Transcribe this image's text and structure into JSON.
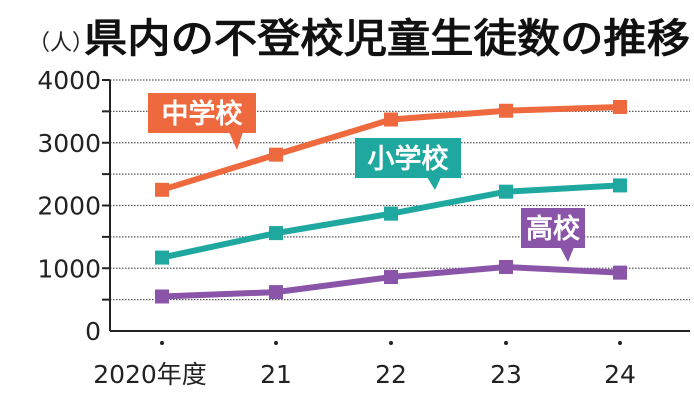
{
  "chart_data": {
    "type": "line",
    "title": "県内の不登校児童生徒数の推移",
    "ylabel": "（人）",
    "xlabel": "",
    "categories": [
      "2020年度",
      "21",
      "22",
      "23",
      "24"
    ],
    "ylim": [
      0,
      4000
    ],
    "yticks": [
      "0",
      "1000",
      "2000",
      "3000",
      "4000"
    ],
    "grid": true,
    "series": [
      {
        "name": "中学校",
        "color": "#ee6a3e",
        "values": [
          2250,
          2810,
          3370,
          3510,
          3570
        ]
      },
      {
        "name": "小学校",
        "color": "#1ea8a0",
        "values": [
          1170,
          1560,
          1870,
          2220,
          2320
        ]
      },
      {
        "name": "高校",
        "color": "#8a55a8",
        "values": [
          550,
          620,
          860,
          1020,
          930
        ]
      }
    ]
  }
}
